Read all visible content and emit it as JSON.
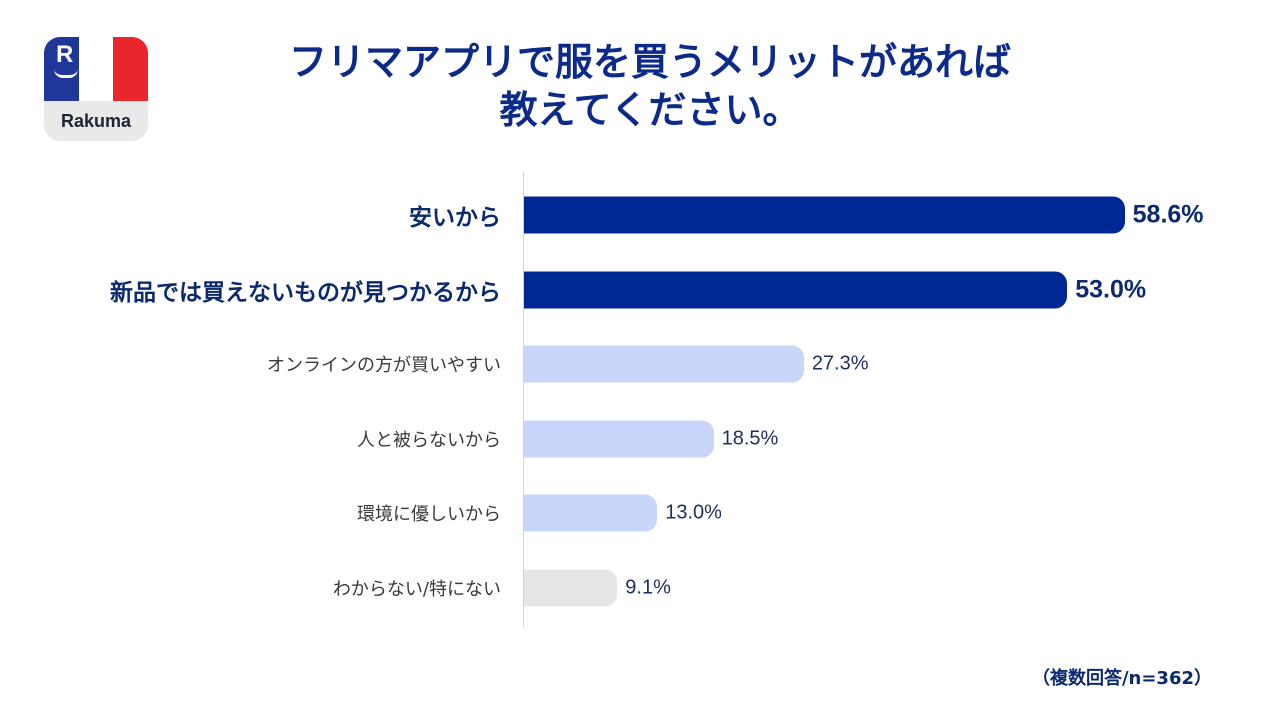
{
  "logo": {
    "brand": "Rakuma",
    "mark": "R",
    "colors": {
      "blue": "#1e3799",
      "white": "#ffffff",
      "red": "#e8262c",
      "strip": "#e9e9ea"
    }
  },
  "title": {
    "line1": "フリマアプリで服を買うメリットがあれば",
    "line2": "教えてください。"
  },
  "colors": {
    "title": "#0b2a8a",
    "highlight_bar": "#002894",
    "highlight_text": "#0b2a6e",
    "light_bar": "#c9d6fb",
    "other_bar": "#e6e6e6",
    "normal_text": "#3a3a3a",
    "value_text": "#1f2e5c"
  },
  "chart_data": {
    "type": "bar",
    "orientation": "horizontal",
    "title": "フリマアプリで服を買うメリットがあれば教えてください。",
    "categories": [
      "安いから",
      "新品では買えないものが見つかるから",
      "オンラインの方が買いやすい",
      "人と被らないから",
      "環境に優しいから",
      "わからない/特にない"
    ],
    "values": [
      58.6,
      53.0,
      27.3,
      18.5,
      13.0,
      9.1
    ],
    "value_labels": [
      "58.6%",
      "53.0%",
      "27.3%",
      "18.5%",
      "13.0%",
      "9.1%"
    ],
    "highlight": [
      true,
      true,
      false,
      false,
      false,
      false
    ],
    "bar_style": [
      "dark",
      "dark",
      "light",
      "light",
      "light",
      "grey"
    ],
    "unit": "%",
    "xlim": [
      0,
      100
    ],
    "note": "（複数回答/n=362）"
  }
}
